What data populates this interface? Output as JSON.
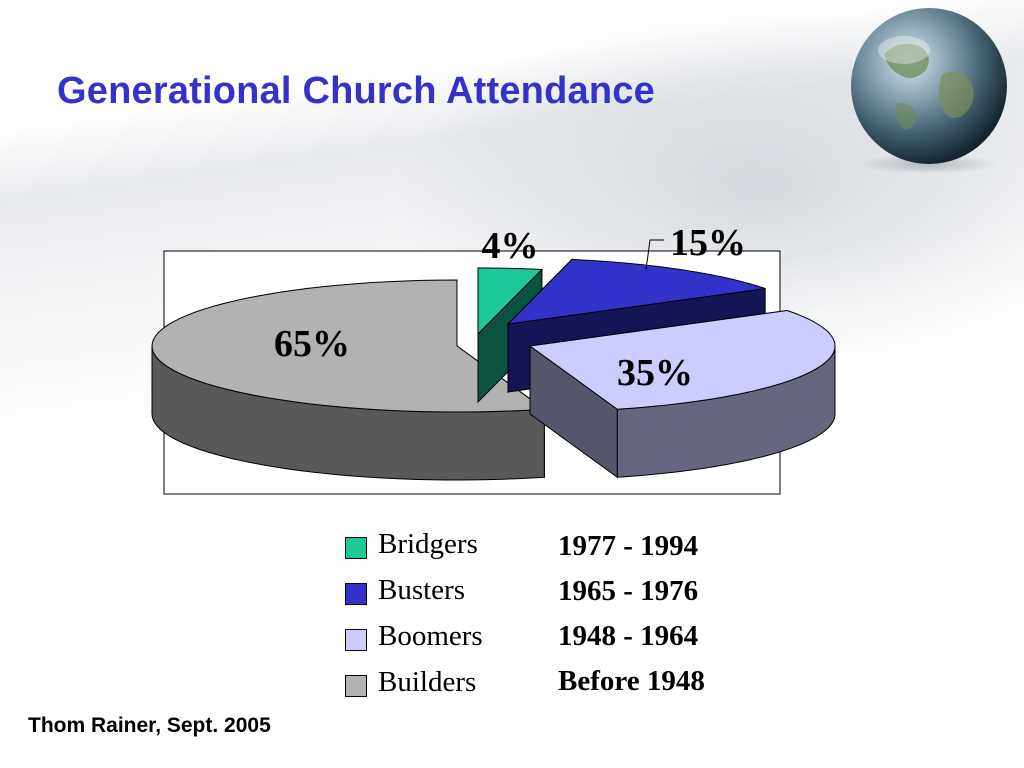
{
  "slide": {
    "title": "Generational Church Attendance",
    "source": "Thom Rainer, Sept. 2005"
  },
  "chart_data": {
    "type": "pie",
    "title": "",
    "series": [
      {
        "name": "Bridgers",
        "value": 4,
        "label": "4%",
        "years": "1977 - 1994",
        "color": "#1dc99a"
      },
      {
        "name": "Busters",
        "value": 15,
        "label": "15%",
        "years": "1965 - 1976",
        "color": "#3333cc"
      },
      {
        "name": "Boomers",
        "value": 35,
        "label": "35%",
        "years": "1948 - 1964",
        "color": "#ccccff"
      },
      {
        "name": "Builders",
        "value": 65,
        "label": "65%",
        "years": "Before 1948",
        "color": "#b2b2b2"
      }
    ],
    "style": "3d-exploded",
    "legend_position": "bottom"
  },
  "decor": {
    "globe": "globe-icon"
  }
}
